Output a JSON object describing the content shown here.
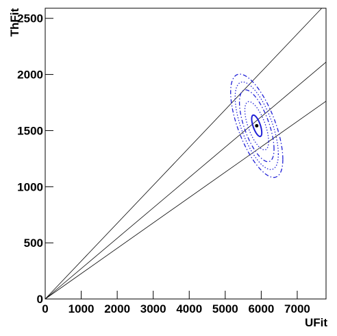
{
  "chart_data": {
    "type": "contour",
    "x_label": "UFit",
    "y_label": "ThFit",
    "xlim": [
      0,
      7800
    ],
    "ylim": [
      0,
      2590
    ],
    "xticks": [
      0,
      1000,
      2000,
      3000,
      4000,
      5000,
      6000,
      7000
    ],
    "yticks": [
      0,
      500,
      1000,
      1500,
      2000,
      2500
    ],
    "lines": [
      {
        "color": "#000000",
        "x": [
          0,
          7680
        ],
        "values": [
          0,
          2590
        ]
      },
      {
        "color": "#000000",
        "x": [
          0,
          7800
        ],
        "values": [
          0,
          2110
        ]
      },
      {
        "color": "#000000",
        "x": [
          0,
          7800
        ],
        "values": [
          0,
          1762
        ]
      }
    ],
    "point": {
      "color": "#000000",
      "x": [
        5875
      ],
      "values": [
        1543
      ]
    },
    "contours": [
      {
        "style": "solid",
        "color": "#1f1fd6",
        "cx": 5875,
        "cy": 1543,
        "sx": 140,
        "sy": 95,
        "rho": -0.65
      },
      {
        "style": "dotted",
        "color": "#1f1fd6",
        "cx": 5875,
        "cy": 1543,
        "sx": 330,
        "sy": 215,
        "rho": -0.65
      },
      {
        "style": "dashdot",
        "color": "#1f1fd6",
        "cx": 5875,
        "cy": 1543,
        "sx": 480,
        "sy": 320,
        "rho": -0.65
      },
      {
        "style": "dotted",
        "color": "#1f1fd6",
        "cx": 5875,
        "cy": 1543,
        "sx": 600,
        "sy": 390,
        "rho": -0.65
      },
      {
        "style": "dashdot",
        "color": "#1f1fd6",
        "cx": 5875,
        "cy": 1543,
        "sx": 725,
        "sy": 460,
        "rho": -0.65
      }
    ]
  }
}
